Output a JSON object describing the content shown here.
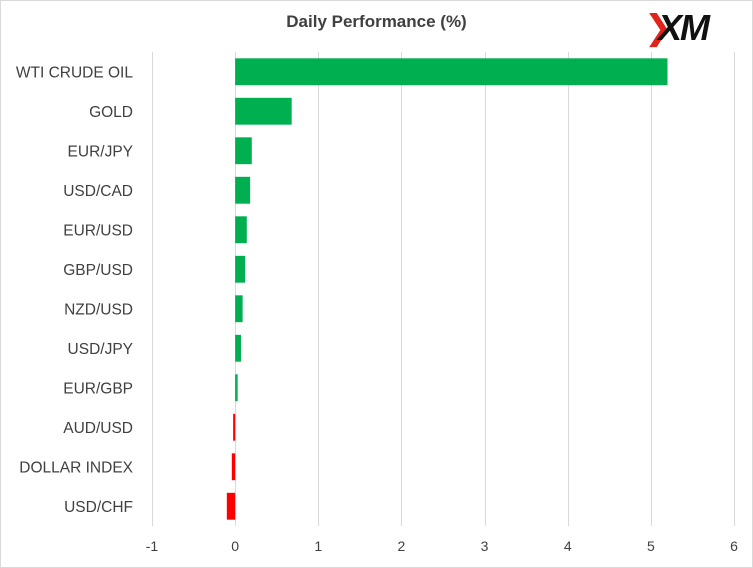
{
  "title": "Daily Performance (%)",
  "logo": {
    "text": "XM",
    "mark": "❯"
  },
  "colors": {
    "positive": "#00b050",
    "negative": "#ff0000",
    "grid": "#d9d9d9",
    "text": "#404040"
  },
  "chart_data": {
    "type": "bar",
    "orientation": "horizontal",
    "title": "Daily Performance (%)",
    "categories": [
      "WTI CRUDE OIL",
      "GOLD",
      "EUR/JPY",
      "USD/CAD",
      "EUR/USD",
      "GBP/USD",
      "NZD/USD",
      "USD/JPY",
      "EUR/GBP",
      "AUD/USD",
      "DOLLAR INDEX",
      "USD/CHF"
    ],
    "values": [
      5.2,
      0.68,
      0.2,
      0.18,
      0.14,
      0.12,
      0.09,
      0.07,
      0.03,
      -0.02,
      -0.04,
      -0.1
    ],
    "xlim": [
      -1,
      6
    ],
    "xticks": [
      -1,
      0,
      1,
      2,
      3,
      4,
      5,
      6
    ],
    "grid": true,
    "legend": "none"
  }
}
